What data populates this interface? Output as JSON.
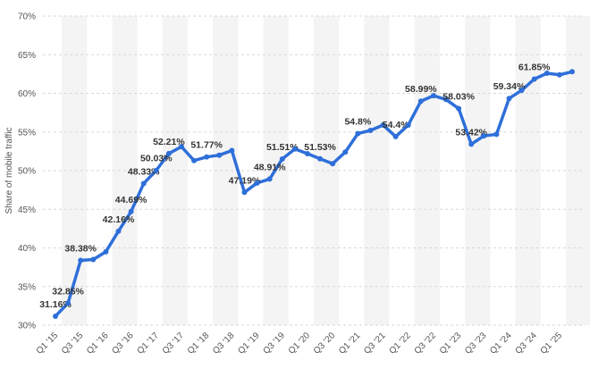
{
  "chart_data": {
    "type": "line",
    "y_label": "Share of mobile traffic",
    "categories": [
      "Q1 '15",
      null,
      "Q3 '15",
      null,
      "Q1 '16",
      null,
      "Q3 '16",
      null,
      "Q1 '17",
      null,
      "Q3 '17",
      null,
      "Q1 '18",
      null,
      "Q3 '18",
      null,
      "Q1 '19",
      null,
      "Q3 '19",
      null,
      "Q1 '20",
      null,
      "Q3 '20",
      null,
      "Q1 '21",
      null,
      "Q3 '21",
      null,
      "Q1 '22",
      null,
      "Q3 '22",
      null,
      "Q1 '23",
      null,
      "Q3 '23",
      null,
      "Q1 '24",
      null,
      "Q3 '24",
      null,
      "Q1 '25",
      null
    ],
    "values": [
      31.16,
      32.85,
      38.38,
      38.5,
      39.5,
      42.16,
      44.69,
      48.33,
      50.03,
      52.21,
      53.1,
      51.3,
      51.77,
      52.0,
      52.6,
      47.19,
      48.4,
      48.91,
      51.51,
      52.8,
      52.2,
      51.53,
      50.9,
      52.4,
      54.8,
      55.2,
      55.9,
      54.4,
      55.9,
      58.99,
      59.7,
      59.2,
      58.03,
      53.42,
      54.5,
      54.7,
      59.34,
      60.4,
      61.85,
      62.6,
      62.4,
      62.8
    ],
    "value_labels": [
      "31.16%",
      "32.85%",
      "38.38%",
      null,
      null,
      "42.16%",
      "44.69%",
      "48.33%",
      "50.03%",
      "52.21%",
      null,
      null,
      "51.77%",
      null,
      null,
      "47.19%",
      null,
      "48.91%",
      "51.51%",
      null,
      null,
      "51.53%",
      null,
      null,
      "54.8%",
      null,
      null,
      "54.4%",
      null,
      "58.99%",
      null,
      null,
      "58.03%",
      "53.42%",
      null,
      null,
      "59.34%",
      null,
      "61.85%",
      null,
      null,
      null
    ],
    "color": "#2e6fd9",
    "ylim": [
      30,
      70
    ],
    "yticks": [
      {
        "value": 30,
        "label": "30%"
      },
      {
        "value": 35,
        "label": "35%"
      },
      {
        "value": 40,
        "label": "40%"
      },
      {
        "value": 45,
        "label": "45%"
      },
      {
        "value": 50,
        "label": "50%"
      },
      {
        "value": 55,
        "label": "55%"
      },
      {
        "value": 60,
        "label": "60%"
      },
      {
        "value": 65,
        "label": "65%"
      },
      {
        "value": 70,
        "label": "70%"
      }
    ],
    "grid": true
  }
}
